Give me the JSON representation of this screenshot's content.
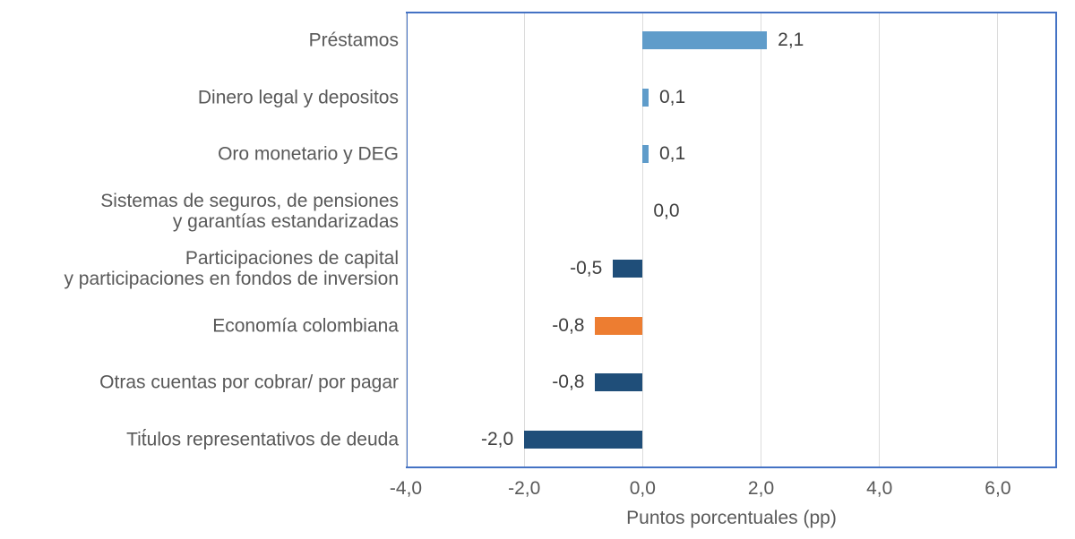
{
  "chart_data": {
    "type": "bar",
    "orientation": "horizontal",
    "title": "",
    "xlabel": "Puntos porcentuales (pp)",
    "ylabel": "",
    "xlim": [
      -4,
      7
    ],
    "grid": true,
    "legend": false,
    "background": "#FFFFFF",
    "x_ticks": [
      {
        "value": -4,
        "label": "-4,0"
      },
      {
        "value": -2,
        "label": "-2,0"
      },
      {
        "value": 0,
        "label": "0,0"
      },
      {
        "value": 2,
        "label": "2,0"
      },
      {
        "value": 4,
        "label": "4,0"
      },
      {
        "value": 6,
        "label": "6,0"
      }
    ],
    "categories": [
      "Préstamos",
      "Dinero legal y depositos",
      "Oro monetario y DEG",
      "Sistemas de seguros, de pensiones\ny garantías estandarizadas",
      "Participaciones de capital\ny participaciones en fondos de inversion",
      "Economía colombiana",
      "Otras cuentas por cobrar/ por pagar",
      "Tit́ulos representativos de deuda"
    ],
    "values": [
      2.1,
      0.1,
      0.1,
      0.0,
      -0.5,
      -0.8,
      -0.8,
      -2.0
    ],
    "rows": [
      {
        "category": "Préstamos",
        "value": 2.1,
        "label": "2,1",
        "color": "#5F9CCA"
      },
      {
        "category": "Dinero legal y depositos",
        "value": 0.1,
        "label": "0,1",
        "color": "#5F9CCA"
      },
      {
        "category": "Oro monetario y DEG",
        "value": 0.1,
        "label": "0,1",
        "color": "#5F9CCA"
      },
      {
        "category": "Sistemas de seguros, de pensiones\ny garantías estandarizadas",
        "value": 0.0,
        "label": "0,0",
        "color": "#5F9CCA"
      },
      {
        "category": "Participaciones de capital\ny participaciones en fondos de inversion",
        "value": -0.5,
        "label": "-0,5",
        "color": "#1F4E79"
      },
      {
        "category": "Economía colombiana",
        "value": -0.8,
        "label": "-0,8",
        "color": "#ED7D31"
      },
      {
        "category": "Otras cuentas por cobrar/ por pagar",
        "value": -0.8,
        "label": "-0,8",
        "color": "#1F4E79"
      },
      {
        "category": "Tit́ulos representativos de deuda",
        "value": -2.0,
        "label": "-2,0",
        "color": "#1F4E79"
      }
    ],
    "colors": {
      "positive_bar": "#5F9CCA",
      "negative_bar": "#1F4E79",
      "highlight_bar": "#ED7D31",
      "plot_border": "#4472C4",
      "gridline": "#DCDCDC",
      "category_text": "#595959",
      "value_text": "#404040"
    }
  }
}
